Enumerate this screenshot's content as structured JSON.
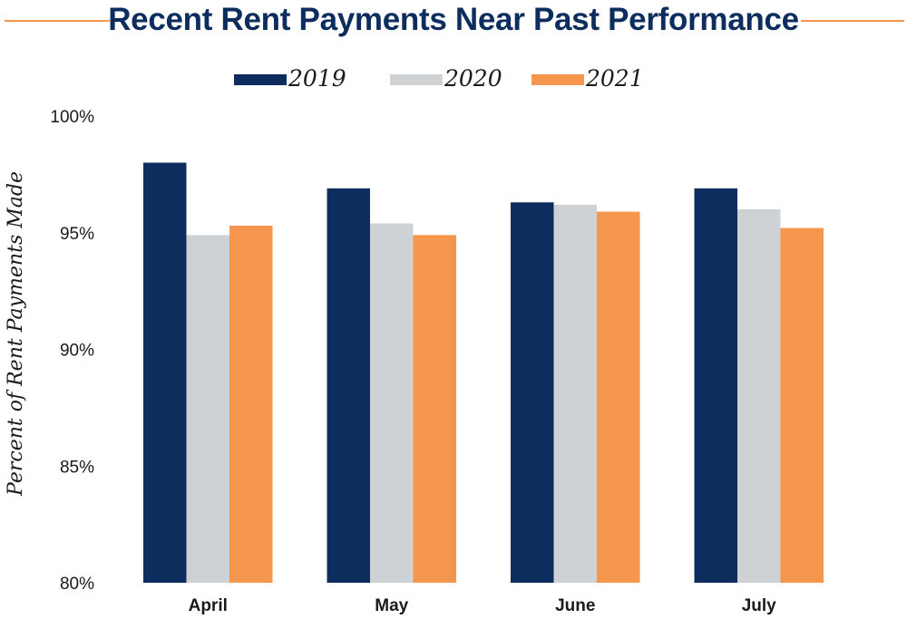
{
  "chart_data": {
    "type": "bar",
    "title": "Recent Rent Payments Near Past Performance",
    "ylabel": "Percent of Rent Payments Made",
    "xlabel": "",
    "categories": [
      "April",
      "May",
      "June",
      "July"
    ],
    "series": [
      {
        "name": "2019",
        "color": "#0d2d5e",
        "values": [
          98.0,
          96.9,
          96.3,
          96.9
        ]
      },
      {
        "name": "2020",
        "color": "#cfd2d5",
        "values": [
          94.9,
          95.4,
          96.2,
          96.0
        ]
      },
      {
        "name": "2021",
        "color": "#f5964f",
        "values": [
          95.3,
          94.9,
          95.9,
          95.2
        ]
      }
    ],
    "ylim": [
      80,
      100
    ],
    "yticks": [
      80,
      85,
      90,
      95,
      100
    ],
    "ytick_labels": [
      "80%",
      "85%",
      "90%",
      "95%",
      "100%"
    ],
    "grid": false,
    "legend_position": "top-center"
  },
  "colors": {
    "accent_rule": "#f5964f",
    "title": "#0d2d5e"
  }
}
